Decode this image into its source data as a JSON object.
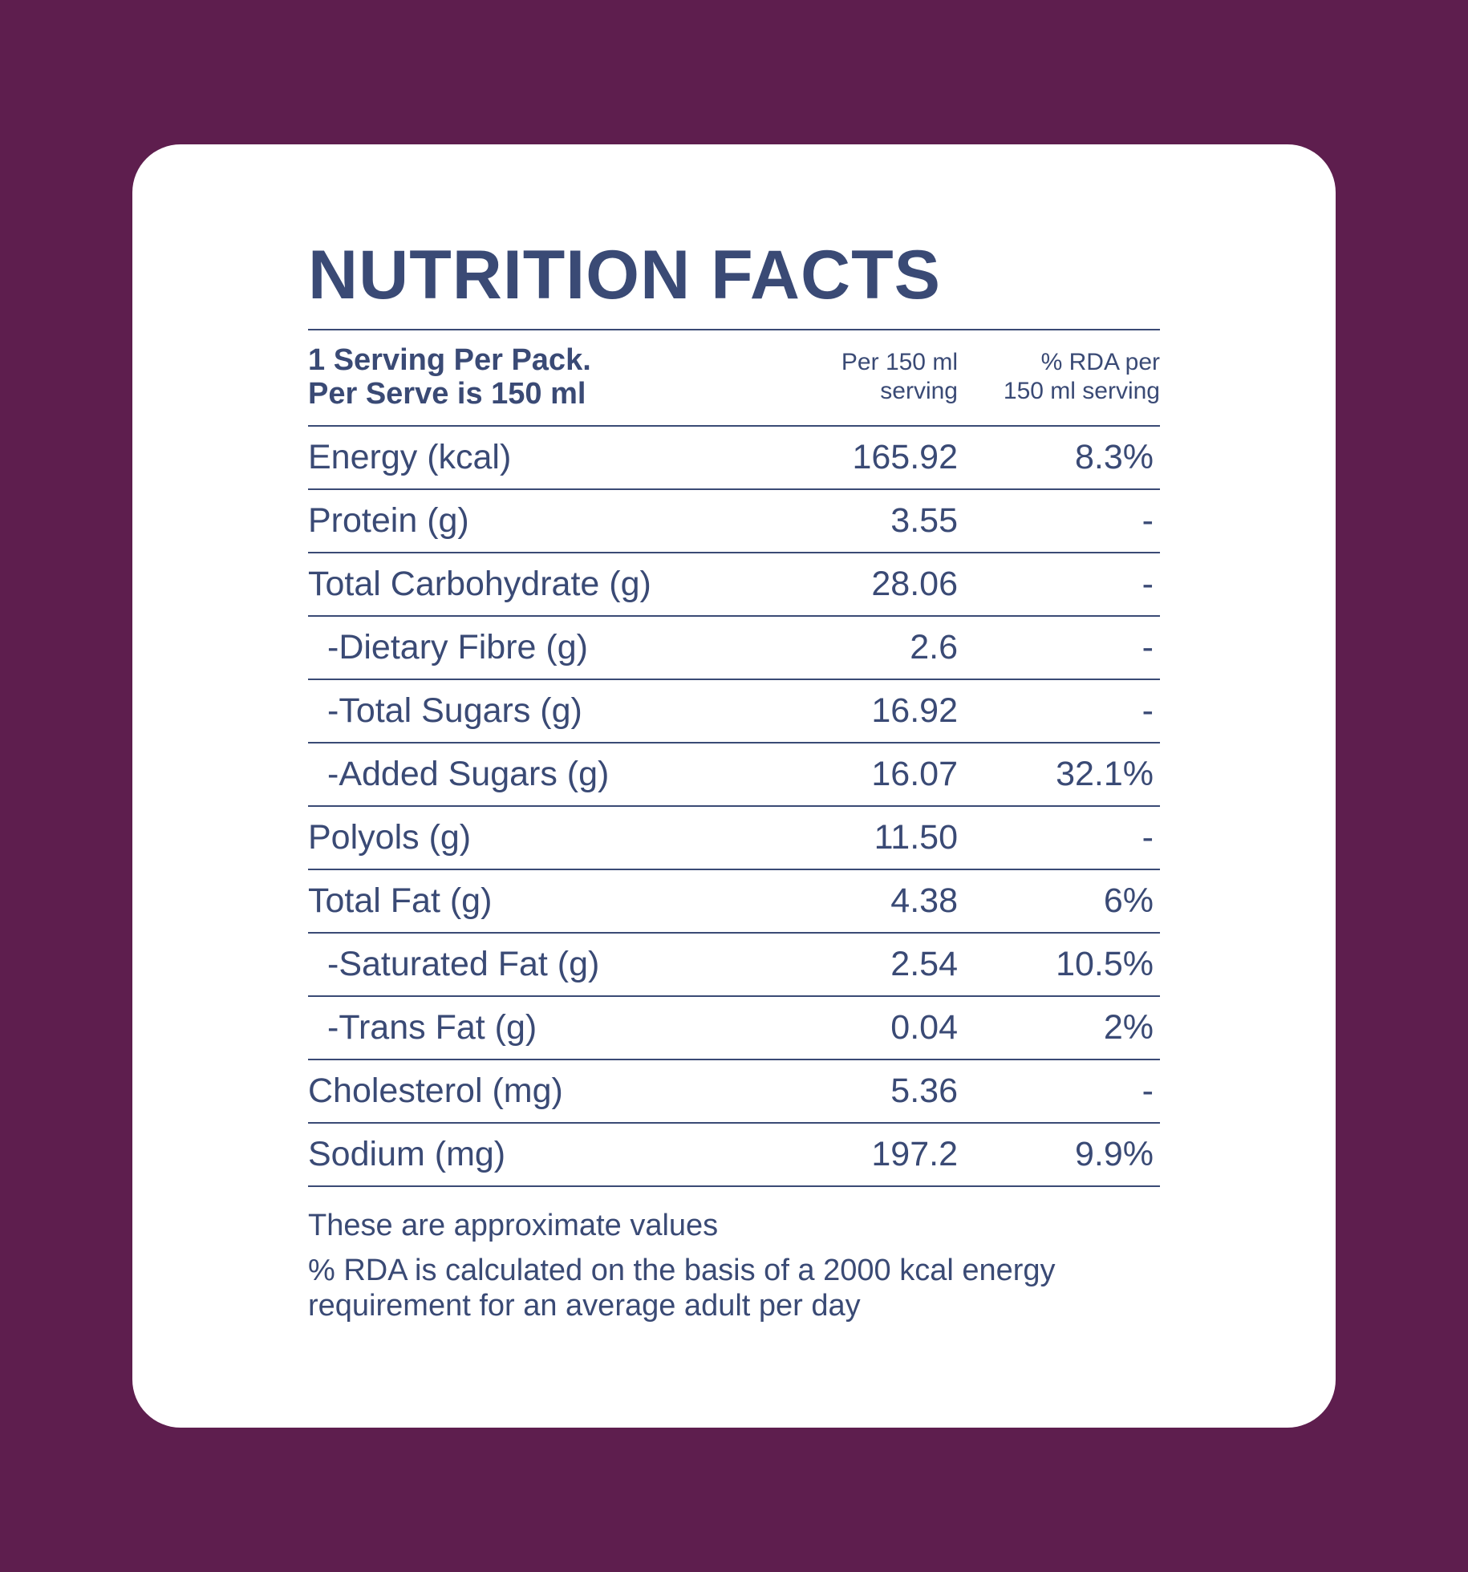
{
  "title": "NUTRITION FACTS",
  "header": {
    "serving_line1": "1 Serving Per Pack.",
    "serving_line2": "Per Serve is 150 ml",
    "col_per_line1": "Per 150 ml",
    "col_per_line2": "serving",
    "col_rda_line1": "% RDA per",
    "col_rda_line2": "150 ml serving"
  },
  "rows": [
    {
      "label": "Energy (kcal)",
      "value": "165.92",
      "rda": "8.3%"
    },
    {
      "label": "Protein (g)",
      "value": "3.55",
      "rda": "-"
    },
    {
      "label": "Total Carbohydrate (g)",
      "value": "28.06",
      "rda": "-"
    },
    {
      "label": "-Dietary Fibre (g)",
      "value": "2.6",
      "rda": "-"
    },
    {
      "label": "-Total Sugars (g)",
      "value": "16.92",
      "rda": "-"
    },
    {
      "label": "-Added Sugars (g)",
      "value": "16.07",
      "rda": "32.1%"
    },
    {
      "label": "Polyols (g)",
      "value": "11.50",
      "rda": "-"
    },
    {
      "label": "Total Fat (g)",
      "value": "4.38",
      "rda": "6%"
    },
    {
      "label": "-Saturated Fat (g)",
      "value": "2.54",
      "rda": "10.5%"
    },
    {
      "label": "-Trans Fat (g)",
      "value": "0.04",
      "rda": "2%"
    },
    {
      "label": "Cholesterol (mg)",
      "value": "5.36",
      "rda": "-"
    },
    {
      "label": "Sodium (mg)",
      "value": "197.2",
      "rda": "9.9%"
    }
  ],
  "notes": {
    "note1": "These are approximate values",
    "note2": "%  RDA is calculated on the basis of a 2000 kcal energy requirement for an average adult per day"
  },
  "colors": {
    "background": "#5e1e4e",
    "card": "#ffffff",
    "text": "#3a4a75"
  }
}
